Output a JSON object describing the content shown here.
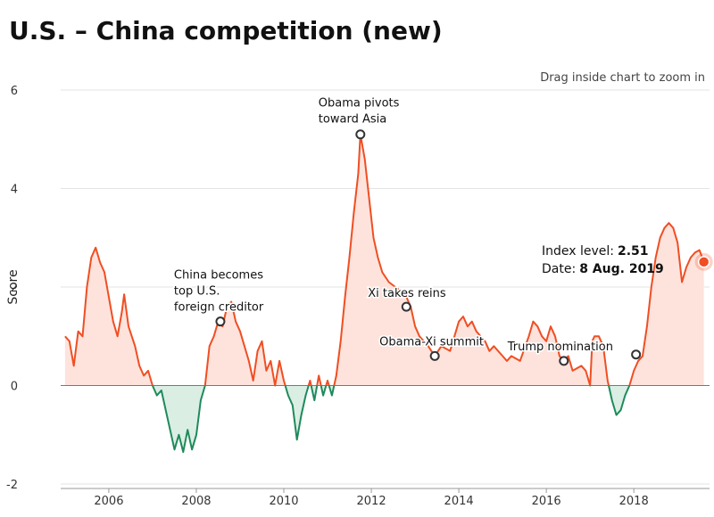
{
  "chart_data": {
    "type": "area",
    "title": "U.S. – China competition (new)",
    "hint": "Drag inside chart to zoom in",
    "y_label": "Score",
    "xlim": [
      2004.9,
      2019.73
    ],
    "xticks": [
      2006,
      2008,
      2010,
      2012,
      2014,
      2016,
      2018
    ],
    "ylim": [
      -2,
      6
    ],
    "yticks": [
      -2,
      0,
      2,
      4,
      6
    ],
    "grid": true,
    "color_positive": "#f04e23",
    "fill_positive": "#fde3dc",
    "color_negative": "#1f8a5b",
    "fill_negative": "#dbeee4",
    "x": [
      2005.0,
      2005.1,
      2005.2,
      2005.3,
      2005.4,
      2005.5,
      2005.6,
      2005.7,
      2005.8,
      2005.9,
      2006.0,
      2006.1,
      2006.2,
      2006.3,
      2006.35,
      2006.45,
      2006.6,
      2006.7,
      2006.8,
      2006.9,
      2007.0,
      2007.1,
      2007.2,
      2007.3,
      2007.4,
      2007.5,
      2007.6,
      2007.7,
      2007.8,
      2007.9,
      2008.0,
      2008.1,
      2008.2,
      2008.3,
      2008.4,
      2008.5,
      2008.6,
      2008.7,
      2008.8,
      2008.9,
      2009.0,
      2009.1,
      2009.2,
      2009.3,
      2009.4,
      2009.5,
      2009.6,
      2009.7,
      2009.8,
      2009.9,
      2010.0,
      2010.1,
      2010.2,
      2010.3,
      2010.4,
      2010.5,
      2010.6,
      2010.7,
      2010.8,
      2010.9,
      2011.0,
      2011.1,
      2011.2,
      2011.3,
      2011.4,
      2011.5,
      2011.6,
      2011.7,
      2011.75,
      2011.85,
      2011.95,
      2012.05,
      2012.15,
      2012.25,
      2012.4,
      2012.55,
      2012.7,
      2012.8,
      2012.9,
      2013.0,
      2013.1,
      2013.2,
      2013.3,
      2013.45,
      2013.6,
      2013.8,
      2013.9,
      2014.0,
      2014.1,
      2014.2,
      2014.3,
      2014.4,
      2014.5,
      2014.6,
      2014.7,
      2014.8,
      2015.0,
      2015.1,
      2015.2,
      2015.4,
      2015.6,
      2015.7,
      2015.8,
      2015.9,
      2016.0,
      2016.1,
      2016.2,
      2016.3,
      2016.4,
      2016.5,
      2016.6,
      2016.8,
      2016.9,
      2017.0,
      2017.05,
      2017.1,
      2017.2,
      2017.3,
      2017.4,
      2017.5,
      2017.6,
      2017.7,
      2017.8,
      2017.9,
      2018.0,
      2018.1,
      2018.2,
      2018.3,
      2018.4,
      2018.5,
      2018.6,
      2018.7,
      2018.8,
      2018.9,
      2019.0,
      2019.1,
      2019.2,
      2019.3,
      2019.4,
      2019.5,
      2019.6
    ],
    "values": [
      1.0,
      0.9,
      0.4,
      1.1,
      1.0,
      2.0,
      2.6,
      2.8,
      2.5,
      2.3,
      1.8,
      1.3,
      1.0,
      1.5,
      1.85,
      1.2,
      0.8,
      0.4,
      0.2,
      0.3,
      0.0,
      -0.2,
      -0.1,
      -0.5,
      -0.9,
      -1.3,
      -1.0,
      -1.35,
      -0.9,
      -1.3,
      -1.0,
      -0.3,
      0.0,
      0.8,
      1.0,
      1.3,
      1.2,
      1.6,
      1.7,
      1.3,
      1.1,
      0.8,
      0.5,
      0.1,
      0.7,
      0.9,
      0.3,
      0.5,
      0.0,
      0.5,
      0.1,
      -0.2,
      -0.4,
      -1.1,
      -0.6,
      -0.2,
      0.1,
      -0.3,
      0.2,
      -0.2,
      0.1,
      -0.2,
      0.2,
      0.9,
      1.8,
      2.6,
      3.5,
      4.3,
      5.1,
      4.6,
      3.8,
      3.0,
      2.6,
      2.3,
      2.1,
      2.0,
      1.9,
      1.8,
      1.6,
      1.2,
      1.0,
      0.9,
      0.8,
      0.6,
      0.8,
      0.7,
      1.0,
      1.3,
      1.4,
      1.2,
      1.3,
      1.1,
      1.0,
      0.9,
      0.7,
      0.8,
      0.6,
      0.5,
      0.6,
      0.5,
      1.0,
      1.3,
      1.2,
      1.0,
      0.9,
      1.2,
      1.0,
      0.6,
      0.5,
      0.6,
      0.3,
      0.4,
      0.3,
      0.0,
      0.9,
      1.0,
      1.0,
      0.8,
      0.1,
      -0.3,
      -0.6,
      -0.5,
      -0.2,
      0.0,
      0.3,
      0.5,
      0.6,
      1.2,
      2.0,
      2.6,
      3.0,
      3.2,
      3.3,
      3.2,
      2.9,
      2.1,
      2.4,
      2.6,
      2.7,
      2.75,
      2.51
    ],
    "annotations": [
      {
        "lines": [
          "Obama pivots",
          "toward Asia"
        ],
        "x": 2011.75,
        "y": 5.1
      },
      {
        "lines": [
          "China becomes",
          "top U.S.",
          "foreign creditor"
        ],
        "x": 2008.55,
        "y": 1.3
      },
      {
        "lines": [
          "Xi takes reins"
        ],
        "x": 2012.8,
        "y": 1.6
      },
      {
        "lines": [
          "Obama-Xi summit"
        ],
        "x": 2013.45,
        "y": 0.6
      },
      {
        "lines": [
          "Trump nomination"
        ],
        "x": 2016.4,
        "y": 0.5
      },
      {
        "x": 2018.05,
        "y": 0.63
      }
    ],
    "tooltip": {
      "level_label": "Index level:",
      "level": 2.51,
      "date_label": "Date:",
      "date": "8 Aug. 2019"
    }
  }
}
